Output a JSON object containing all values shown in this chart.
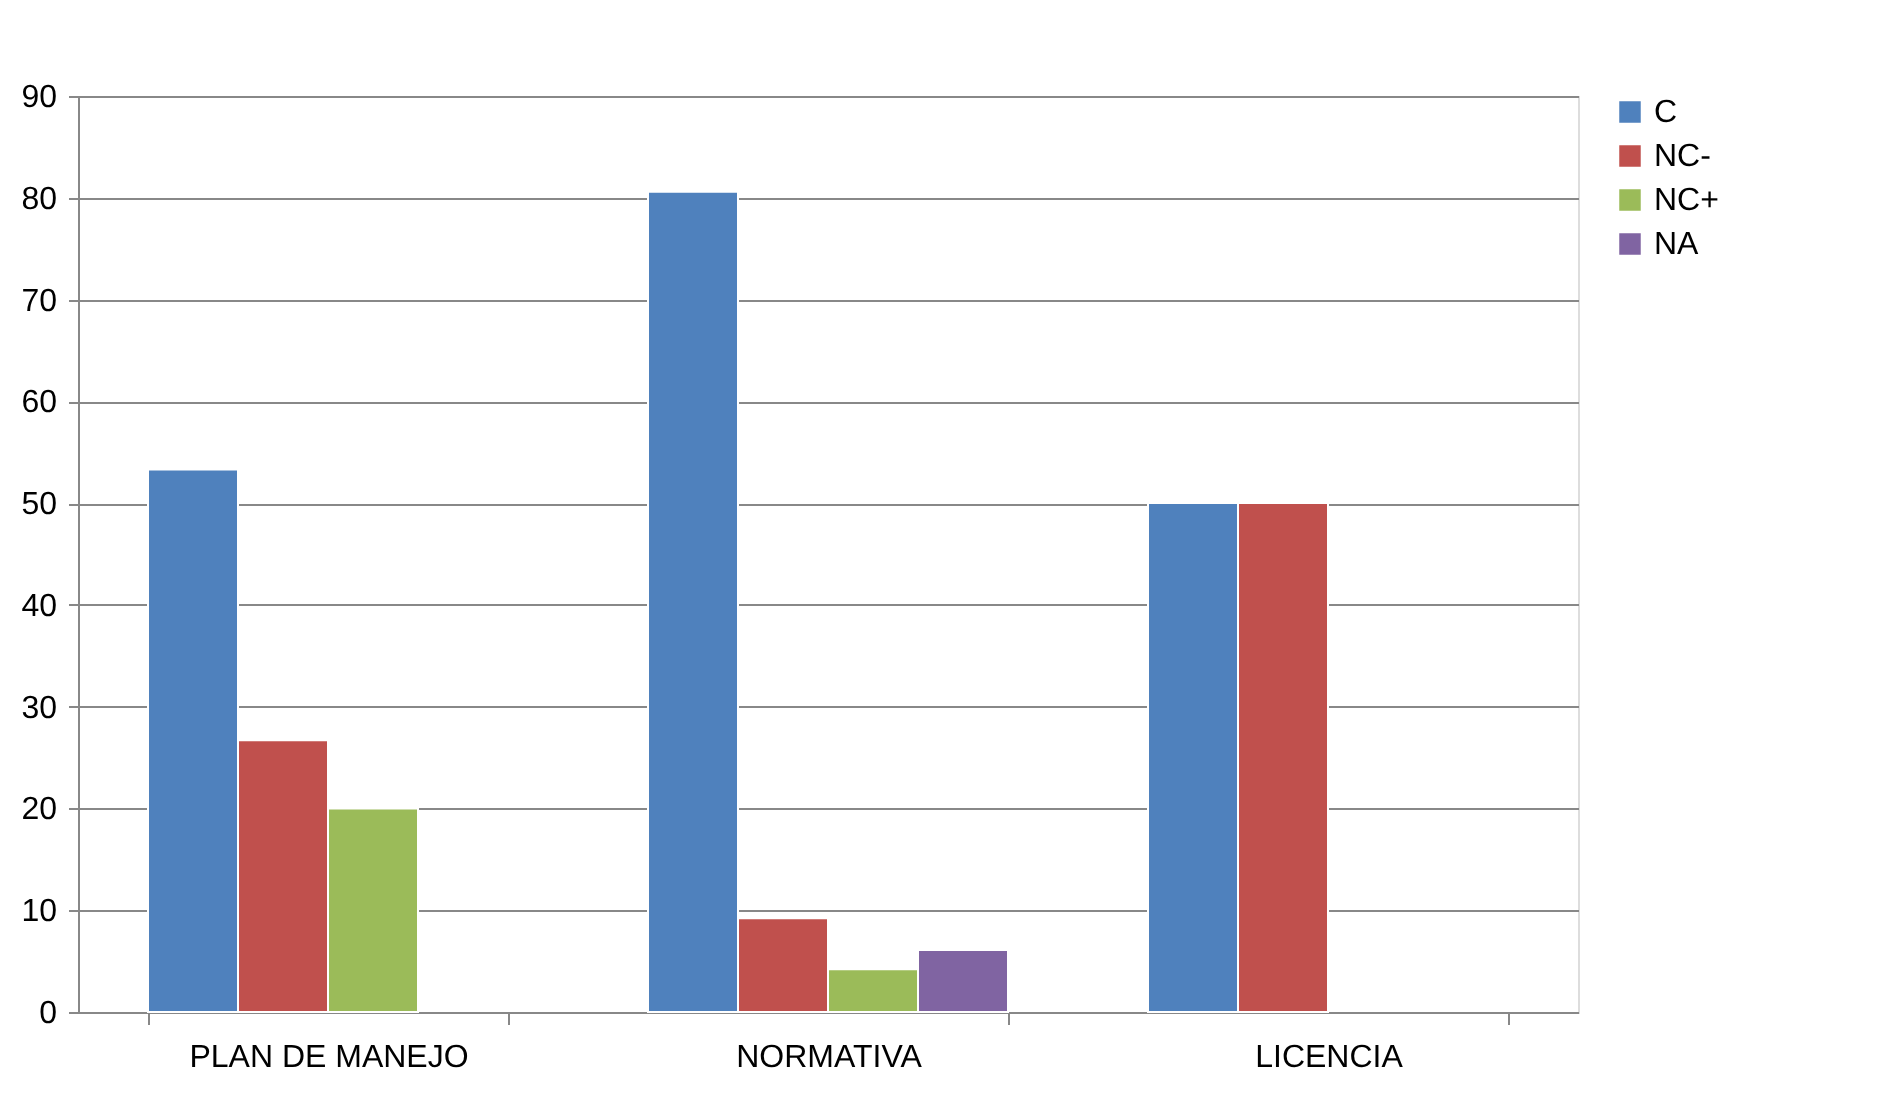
{
  "chart_data": {
    "type": "bar",
    "categories": [
      "PLAN DE MANEJO",
      "NORMATIVA",
      "LICENCIA"
    ],
    "series": [
      {
        "name": "C",
        "color": "#4f81bd",
        "values": [
          53.3,
          80.6,
          50
        ]
      },
      {
        "name": "NC-",
        "color": "#c0504d",
        "values": [
          26.7,
          9.2,
          50
        ]
      },
      {
        "name": "NC+",
        "color": "#9bbb59",
        "values": [
          20,
          4.2,
          null
        ]
      },
      {
        "name": "NA",
        "color": "#8064a2",
        "values": [
          null,
          6.1,
          null
        ]
      }
    ],
    "ylim": [
      0,
      90
    ],
    "yticks": [
      0,
      10,
      20,
      30,
      40,
      50,
      60,
      70,
      80,
      90
    ],
    "grid": "y",
    "legend": "right"
  }
}
